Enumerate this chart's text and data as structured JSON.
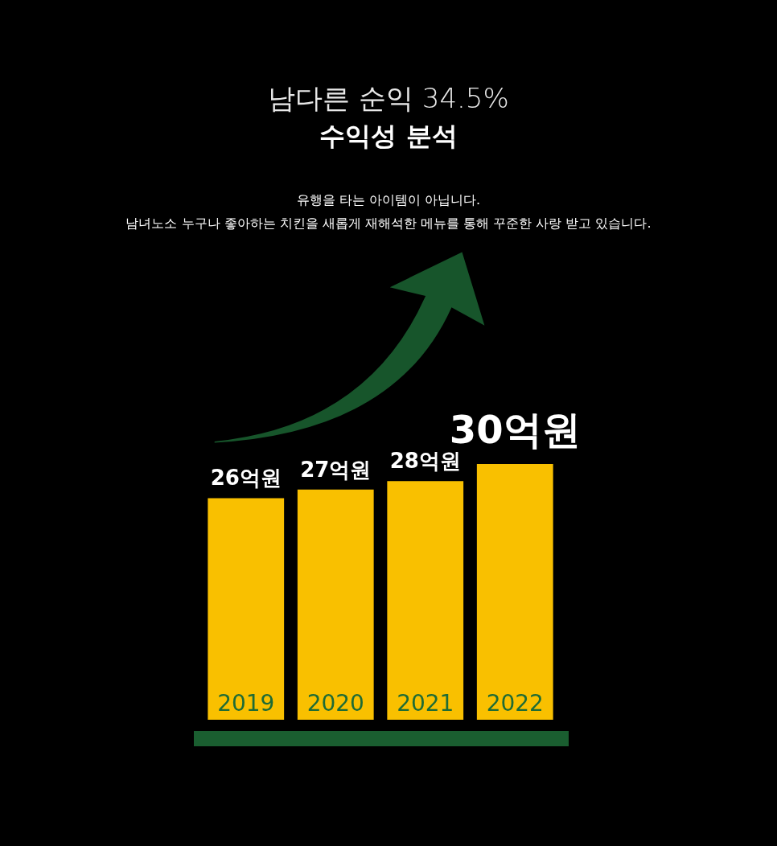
{
  "chart_data": {
    "type": "bar",
    "title": "남다른 순익 34.5%",
    "subtitle": "수익성 분석",
    "annotations": [
      "유행을 타는 아이템이 아닙니다.",
      "남녀노소 누구나 좋아하는 치킨을 새롭게 재해석한 메뉴를 통해 꾸준한 사랑 받고 있습니다."
    ],
    "categories": [
      "2019",
      "2020",
      "2021",
      "2022"
    ],
    "values": [
      26,
      27,
      28,
      30
    ],
    "color": "#f9c000",
    "value_labels": [
      "26억원",
      "27억원",
      "28억원",
      "30억원"
    ],
    "legend": false
  }
}
